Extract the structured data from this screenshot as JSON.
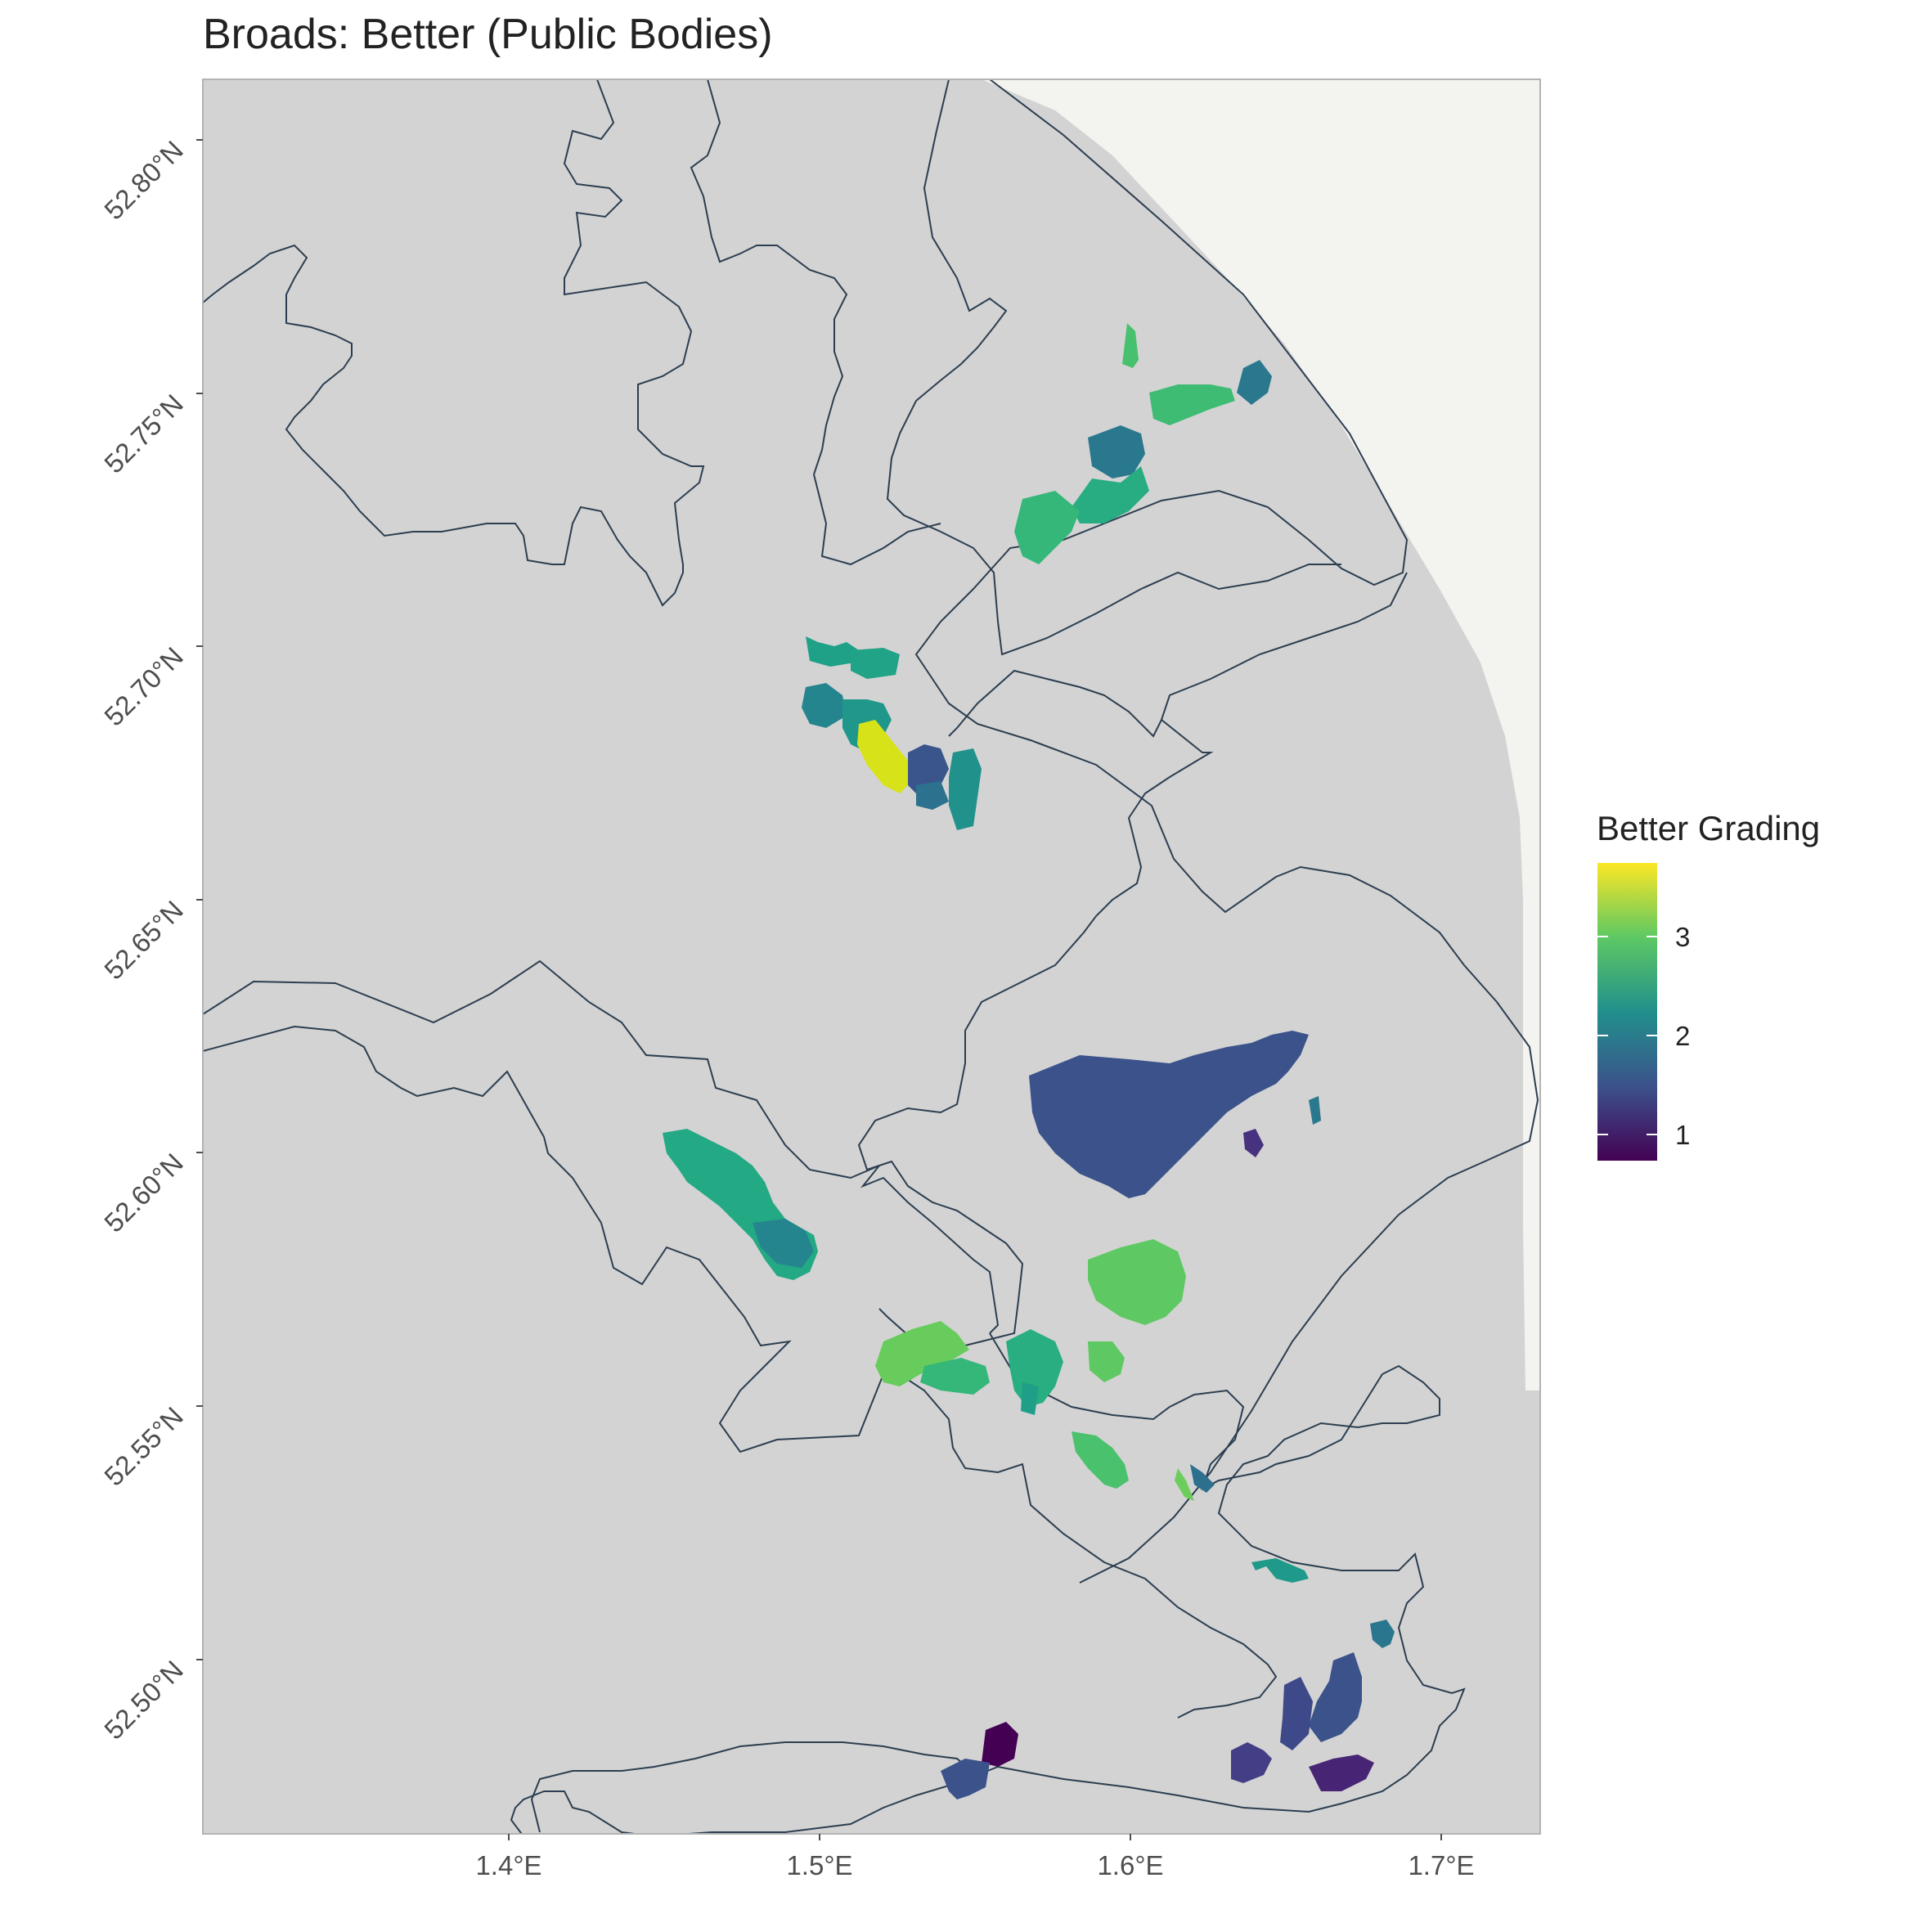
{
  "title": "Broads: Better (Public Bodies)",
  "map": {
    "land_color": "#d3d3d3",
    "sea_color": "#f3f3ef",
    "boundary_color": "#2c3e50",
    "panel_border_color": "#b3b3b3"
  },
  "axes": {
    "lat_labels": [
      "52.80°N",
      "52.75°N",
      "52.70°N",
      "52.65°N",
      "52.60°N",
      "52.55°N",
      "52.50°N"
    ],
    "lon_labels": [
      "1.4°E",
      "1.5°E",
      "1.6°E",
      "1.7°E"
    ]
  },
  "legend": {
    "title": "Better Grading",
    "ticks": [
      "3",
      "2",
      "1"
    ],
    "palette": "viridis",
    "colors": [
      "#440154",
      "#3b528b",
      "#21908c",
      "#5dc863",
      "#fde725"
    ]
  },
  "chart_data": {
    "type": "choropleth",
    "title": "Broads: Better (Public Bodies)",
    "x_axis": "longitude",
    "y_axis": "latitude",
    "xlim": [
      1.3,
      1.73
    ],
    "ylim": [
      52.455,
      52.82
    ],
    "legend_title": "Better Grading",
    "legend_range": [
      0.8,
      3.8
    ],
    "regions": [
      {
        "lon": 1.605,
        "lat": 52.765,
        "grading": 2.8
      },
      {
        "lon": 1.64,
        "lat": 52.748,
        "grading": 2.7
      },
      {
        "lon": 1.645,
        "lat": 52.752,
        "grading": 2.0
      },
      {
        "lon": 1.585,
        "lat": 52.733,
        "grading": 2.2
      },
      {
        "lon": 1.575,
        "lat": 52.718,
        "grading": 2.7
      },
      {
        "lon": 1.5,
        "lat": 52.698,
        "grading": 2.6
      },
      {
        "lon": 1.518,
        "lat": 52.698,
        "grading": 2.8
      },
      {
        "lon": 1.502,
        "lat": 52.686,
        "grading": 2.4
      },
      {
        "lon": 1.525,
        "lat": 52.677,
        "grading": 3.7
      },
      {
        "lon": 1.555,
        "lat": 52.673,
        "grading": 2.5
      },
      {
        "lon": 1.54,
        "lat": 52.674,
        "grading": 2.3
      },
      {
        "lon": 1.615,
        "lat": 52.609,
        "grading": 1.5
      },
      {
        "lon": 1.642,
        "lat": 52.601,
        "grading": 1.2
      },
      {
        "lon": 1.463,
        "lat": 52.598,
        "grading": 2.5
      },
      {
        "lon": 1.488,
        "lat": 52.585,
        "grading": 2.2
      },
      {
        "lon": 1.61,
        "lat": 52.572,
        "grading": 2.8
      },
      {
        "lon": 1.545,
        "lat": 52.557,
        "grading": 2.9
      },
      {
        "lon": 1.57,
        "lat": 52.553,
        "grading": 2.4
      },
      {
        "lon": 1.595,
        "lat": 52.555,
        "grading": 2.9
      },
      {
        "lon": 1.595,
        "lat": 52.535,
        "grading": 2.8
      },
      {
        "lon": 1.625,
        "lat": 52.531,
        "grading": 2.3
      },
      {
        "lon": 1.655,
        "lat": 52.512,
        "grading": 2.2
      },
      {
        "lon": 1.688,
        "lat": 52.503,
        "grading": 2.0
      },
      {
        "lon": 1.665,
        "lat": 52.48,
        "grading": 1.5
      },
      {
        "lon": 1.678,
        "lat": 52.47,
        "grading": 1.1
      },
      {
        "lon": 1.552,
        "lat": 52.472,
        "grading": 1.4
      },
      {
        "lon": 1.562,
        "lat": 52.478,
        "grading": 0.9
      }
    ]
  }
}
